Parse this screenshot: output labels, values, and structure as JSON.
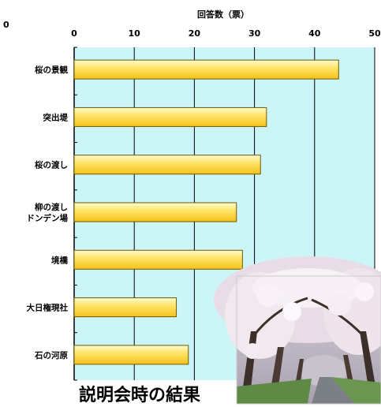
{
  "chart_data": {
    "type": "bar",
    "orientation": "horizontal",
    "xlabel": "回答数（票）",
    "xlim": [
      0,
      50
    ],
    "x_ticks": [
      0,
      10,
      20,
      30,
      40,
      50
    ],
    "grid": true,
    "categories": [
      [
        "桜の景観"
      ],
      [
        "突出堤"
      ],
      [
        "桜の渡し"
      ],
      [
        "柳の渡し",
        "ドンデン場"
      ],
      [
        "境橋"
      ],
      [
        "大日権現社"
      ],
      [
        "石の河原"
      ]
    ],
    "values": [
      44,
      32,
      31,
      27,
      28,
      17,
      19
    ],
    "colors": {
      "plot_background": "#ccf5f8",
      "bar_light": "#fffbd0",
      "bar_dark": "#f4c21a",
      "bar_stroke": "#6b5a00",
      "grid": "#000000"
    }
  },
  "caption": "説明会時の結果",
  "photo": {
    "icon": "cherry-blossom-tunnel-photo"
  },
  "corner_fragment": "0"
}
